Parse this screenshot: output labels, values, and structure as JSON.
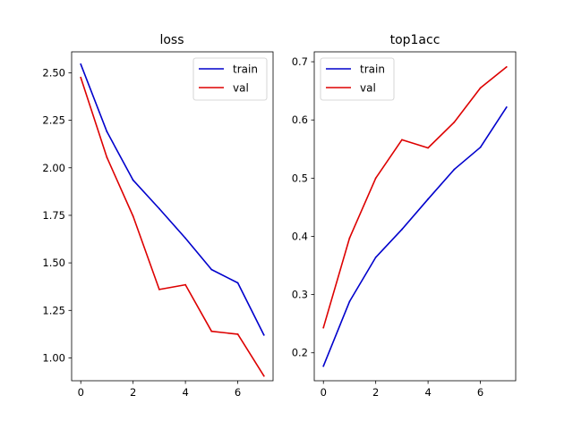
{
  "chart_data": [
    {
      "type": "line",
      "title": "loss",
      "xlabel": "",
      "ylabel": "",
      "x": [
        0,
        1,
        2,
        3,
        4,
        5,
        6,
        7
      ],
      "xlim": [
        -0.35,
        7.35
      ],
      "ylim": [
        0.88,
        2.61
      ],
      "xticks": [
        0,
        2,
        4,
        6
      ],
      "yticks": [
        1.0,
        1.25,
        1.5,
        1.75,
        2.0,
        2.25,
        2.5
      ],
      "ytick_labels": [
        "1.00",
        "1.25",
        "1.50",
        "1.75",
        "2.00",
        "2.25",
        "2.50"
      ],
      "grid": false,
      "legend": "top-right",
      "series": [
        {
          "name": "train",
          "color": "#0000cc",
          "values": [
            2.545,
            2.19,
            1.935,
            1.785,
            1.63,
            1.465,
            1.395,
            1.12
          ]
        },
        {
          "name": "val",
          "color": "#dd0000",
          "values": [
            2.475,
            2.055,
            1.745,
            1.36,
            1.385,
            1.14,
            1.125,
            0.905
          ]
        }
      ]
    },
    {
      "type": "line",
      "title": "top1acc",
      "xlabel": "",
      "ylabel": "",
      "x": [
        0,
        1,
        2,
        3,
        4,
        5,
        6,
        7
      ],
      "xlim": [
        -0.35,
        7.35
      ],
      "ylim": [
        0.152,
        0.717
      ],
      "xticks": [
        0,
        2,
        4,
        6
      ],
      "yticks": [
        0.2,
        0.3,
        0.4,
        0.5,
        0.6,
        0.7
      ],
      "ytick_labels": [
        "0.2",
        "0.3",
        "0.4",
        "0.5",
        "0.6",
        "0.7"
      ],
      "grid": false,
      "legend": "top-left",
      "series": [
        {
          "name": "train",
          "color": "#0000cc",
          "values": [
            0.177,
            0.288,
            0.364,
            0.412,
            0.464,
            0.515,
            0.553,
            0.622
          ]
        },
        {
          "name": "val",
          "color": "#dd0000",
          "values": [
            0.243,
            0.397,
            0.5,
            0.566,
            0.552,
            0.596,
            0.655,
            0.691
          ]
        }
      ]
    }
  ]
}
